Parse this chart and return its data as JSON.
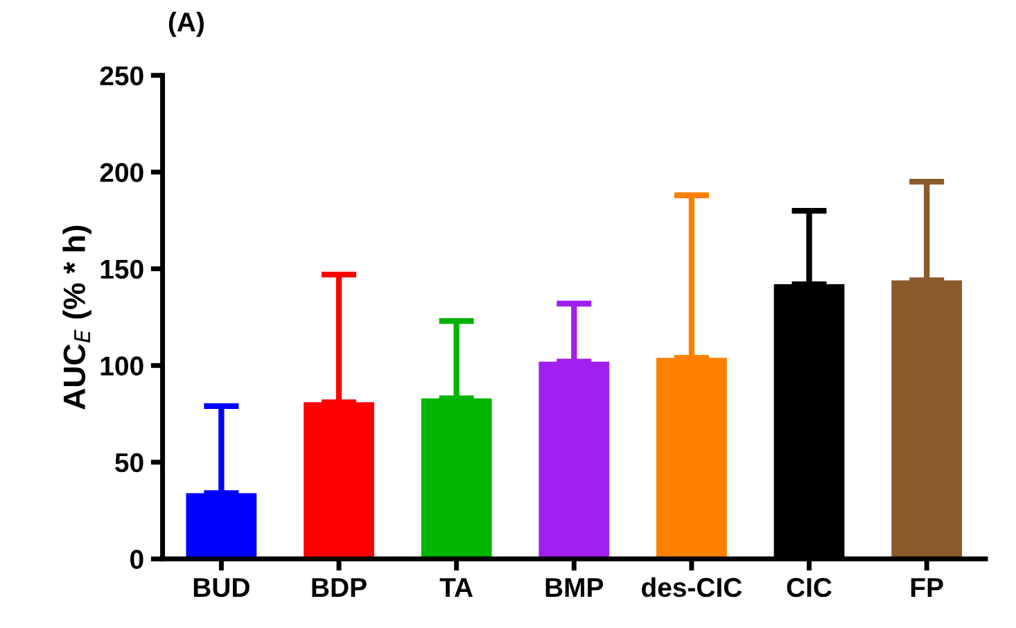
{
  "chart_data": {
    "type": "bar",
    "title": "(A)",
    "ylabel": "AUC$_{E}$ (% * h)",
    "categories": [
      "BUD",
      "BDP",
      "TA",
      "BMP",
      "des-CIC",
      "CIC",
      "FP"
    ],
    "values": [
      34,
      81,
      83,
      102,
      104,
      142,
      144
    ],
    "errors": [
      [
        34,
        79
      ],
      [
        81,
        147
      ],
      [
        83,
        123
      ],
      [
        102,
        132
      ],
      [
        104,
        188
      ],
      [
        142,
        180
      ],
      [
        144,
        195
      ]
    ],
    "colors": [
      "#0000ff",
      "#ff0000",
      "#00b400",
      "#a020f0",
      "#ff8000",
      "#000000",
      "#8b5a2b"
    ],
    "ylim": [
      0,
      250
    ],
    "yticks": [
      0,
      50,
      100,
      150,
      200,
      250
    ],
    "grid": false,
    "legend": false
  }
}
